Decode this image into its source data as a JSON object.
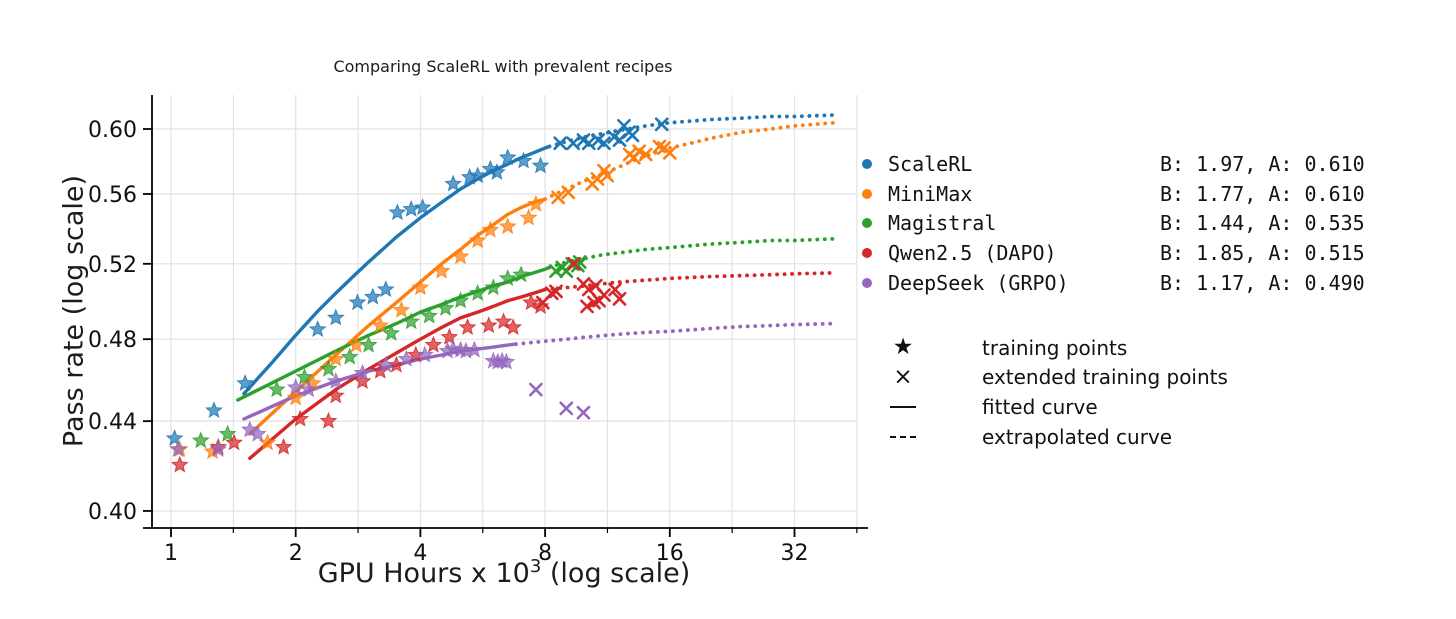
{
  "title": "Comparing ScaleRL with prevalent recipes",
  "axes": {
    "x_label_prefix": "GPU Hours x 10",
    "x_label_sup": "3",
    "x_label_suffix": " (log scale)",
    "y_label": "Pass rate (log scale)",
    "x_ticks": [
      {
        "label": "1",
        "value": 1
      },
      {
        "label": "2",
        "value": 2
      },
      {
        "label": "4",
        "value": 4
      },
      {
        "label": "8",
        "value": 8
      },
      {
        "label": "16",
        "value": 16
      },
      {
        "label": "32",
        "value": 32
      }
    ],
    "x_minor_ticks": [
      1.4142,
      2.8284,
      5.6569,
      11.3137,
      22.6274,
      45.2548
    ],
    "x_gridlines": [
      1,
      1.4142,
      2,
      2.8284,
      4,
      5.6569,
      8,
      11.3137,
      16,
      22.6274,
      32,
      45.2548
    ],
    "y_ticks": [
      {
        "label": "0.60",
        "value": 0.6
      },
      {
        "label": "0.56",
        "value": 0.56
      },
      {
        "label": "0.52",
        "value": 0.52
      },
      {
        "label": "0.48",
        "value": 0.48
      },
      {
        "label": "0.44",
        "value": 0.44
      },
      {
        "label": "0.40",
        "value": 0.4
      }
    ],
    "grid_color": "#e2e2e2",
    "spine_color": "#000000"
  },
  "chart_data": {
    "type": "scatter",
    "title": "Comparing ScaleRL with prevalent recipes",
    "xlabel": "GPU Hours x 10^3 (log scale)",
    "ylabel": "Pass rate (log scale)",
    "xscale": "log2",
    "yscale": "log",
    "xlim": [
      0.9,
      45
    ],
    "ylim": [
      0.393,
      0.622
    ],
    "grid": true,
    "legend_position": "right",
    "series": [
      {
        "name": "ScaleRL",
        "color": "#1f77b4",
        "B": 1.97,
        "A": 0.61,
        "stats": "B: 1.97, A: 0.610",
        "train": [
          [
            1.02,
            0.432
          ],
          [
            1.27,
            0.445
          ],
          [
            1.51,
            0.458
          ],
          [
            2.26,
            0.485
          ],
          [
            2.5,
            0.491
          ],
          [
            2.82,
            0.499
          ],
          [
            3.07,
            0.502
          ],
          [
            3.3,
            0.506
          ],
          [
            3.52,
            0.549
          ],
          [
            3.8,
            0.551
          ],
          [
            4.05,
            0.552
          ],
          [
            4.8,
            0.566
          ],
          [
            5.26,
            0.57
          ],
          [
            5.5,
            0.571
          ],
          [
            5.9,
            0.575
          ],
          [
            6.12,
            0.573
          ],
          [
            6.5,
            0.582
          ],
          [
            7.1,
            0.58
          ],
          [
            7.8,
            0.577
          ]
        ],
        "extended": [
          [
            8.7,
            0.591
          ],
          [
            9.35,
            0.591
          ],
          [
            9.9,
            0.593
          ],
          [
            10.2,
            0.591
          ],
          [
            10.75,
            0.593
          ],
          [
            11.1,
            0.591
          ],
          [
            11.75,
            0.595
          ],
          [
            12.1,
            0.593
          ],
          [
            12.4,
            0.602
          ],
          [
            12.75,
            0.598
          ],
          [
            13.0,
            0.596
          ],
          [
            15.3,
            0.603
          ]
        ],
        "fit": [
          [
            1.5,
            0.453
          ],
          [
            1.75,
            0.468
          ],
          [
            2,
            0.482
          ],
          [
            2.25,
            0.494
          ],
          [
            2.5,
            0.504
          ],
          [
            2.75,
            0.513
          ],
          [
            3,
            0.521
          ],
          [
            3.5,
            0.535
          ],
          [
            4,
            0.546
          ],
          [
            4.5,
            0.555
          ],
          [
            5,
            0.563
          ],
          [
            5.5,
            0.569
          ],
          [
            6,
            0.574
          ],
          [
            6.5,
            0.578
          ],
          [
            7,
            0.582
          ],
          [
            7.5,
            0.585
          ],
          [
            8,
            0.588
          ],
          [
            8.2,
            0.589
          ]
        ],
        "extrapolated": [
          [
            8.2,
            0.589
          ],
          [
            9,
            0.592
          ],
          [
            10,
            0.595
          ],
          [
            11,
            0.597
          ],
          [
            12,
            0.599
          ],
          [
            14,
            0.602
          ],
          [
            16,
            0.604
          ],
          [
            20,
            0.606
          ],
          [
            24,
            0.607
          ],
          [
            28,
            0.608
          ],
          [
            32,
            0.608
          ],
          [
            40,
            0.609
          ]
        ]
      },
      {
        "name": "MiniMax",
        "color": "#ff7f0e",
        "B": 1.77,
        "A": 0.61,
        "stats": "B: 1.77, A: 0.610",
        "train": [
          [
            1.05,
            0.427
          ],
          [
            1.26,
            0.426
          ],
          [
            1.71,
            0.43
          ],
          [
            2.0,
            0.451
          ],
          [
            2.2,
            0.458
          ],
          [
            2.5,
            0.47
          ],
          [
            2.8,
            0.477
          ],
          [
            3.2,
            0.487
          ],
          [
            3.6,
            0.495
          ],
          [
            4.0,
            0.507
          ],
          [
            4.5,
            0.516
          ],
          [
            5.0,
            0.524
          ],
          [
            5.5,
            0.533
          ],
          [
            5.9,
            0.539
          ],
          [
            6.5,
            0.541
          ],
          [
            7.3,
            0.546
          ],
          [
            7.6,
            0.554
          ]
        ],
        "extended": [
          [
            8.6,
            0.558
          ],
          [
            9.1,
            0.561
          ],
          [
            10.4,
            0.566
          ],
          [
            10.7,
            0.569
          ],
          [
            11.1,
            0.574
          ],
          [
            11.3,
            0.571
          ],
          [
            12.8,
            0.584
          ],
          [
            13.1,
            0.582
          ],
          [
            13.5,
            0.586
          ],
          [
            14.0,
            0.584
          ],
          [
            15.1,
            0.589
          ],
          [
            15.5,
            0.588
          ],
          [
            16.0,
            0.585
          ]
        ],
        "fit": [
          [
            1.55,
            0.434
          ],
          [
            2,
            0.454
          ],
          [
            2.5,
            0.472
          ],
          [
            3,
            0.487
          ],
          [
            3.5,
            0.499
          ],
          [
            4,
            0.51
          ],
          [
            4.5,
            0.52
          ],
          [
            5,
            0.528
          ],
          [
            5.5,
            0.536
          ],
          [
            6,
            0.542
          ],
          [
            6.5,
            0.548
          ],
          [
            7,
            0.552
          ],
          [
            7.5,
            0.555
          ],
          [
            8,
            0.557
          ]
        ],
        "extrapolated": [
          [
            8,
            0.557
          ],
          [
            9,
            0.563
          ],
          [
            10,
            0.568
          ],
          [
            11,
            0.572
          ],
          [
            12,
            0.576
          ],
          [
            13,
            0.58
          ],
          [
            14,
            0.583
          ],
          [
            16,
            0.588
          ],
          [
            18,
            0.591
          ],
          [
            20,
            0.594
          ],
          [
            24,
            0.598
          ],
          [
            28,
            0.6
          ],
          [
            32,
            0.602
          ],
          [
            40,
            0.604
          ]
        ]
      },
      {
        "name": "Magistral",
        "color": "#2ca02c",
        "B": 1.44,
        "A": 0.535,
        "stats": "B: 1.44, A: 0.535",
        "train": [
          [
            1.18,
            0.431
          ],
          [
            1.37,
            0.434
          ],
          [
            1.8,
            0.455
          ],
          [
            2.1,
            0.461
          ],
          [
            2.4,
            0.465
          ],
          [
            2.7,
            0.471
          ],
          [
            3.0,
            0.477
          ],
          [
            3.4,
            0.483
          ],
          [
            3.8,
            0.489
          ],
          [
            4.2,
            0.492
          ],
          [
            4.6,
            0.496
          ],
          [
            5.0,
            0.5
          ],
          [
            5.5,
            0.504
          ],
          [
            6.0,
            0.507
          ],
          [
            6.5,
            0.512
          ],
          [
            7.0,
            0.514
          ]
        ],
        "extended": [
          [
            8.5,
            0.516
          ],
          [
            8.8,
            0.518
          ],
          [
            9.0,
            0.516
          ],
          [
            9.3,
            0.52
          ],
          [
            9.6,
            0.519
          ],
          [
            9.7,
            0.521
          ]
        ],
        "fit": [
          [
            1.45,
            0.45
          ],
          [
            2,
            0.464
          ],
          [
            2.5,
            0.474
          ],
          [
            3,
            0.482
          ],
          [
            3.5,
            0.488
          ],
          [
            4,
            0.494
          ],
          [
            4.5,
            0.498
          ],
          [
            5,
            0.502
          ],
          [
            5.5,
            0.505
          ],
          [
            6,
            0.508
          ],
          [
            6.5,
            0.51
          ],
          [
            7,
            0.513
          ],
          [
            7.5,
            0.515
          ],
          [
            8,
            0.517
          ],
          [
            8.2,
            0.518
          ]
        ],
        "extrapolated": [
          [
            8.2,
            0.518
          ],
          [
            9,
            0.521
          ],
          [
            10,
            0.523
          ],
          [
            11,
            0.525
          ],
          [
            12,
            0.526
          ],
          [
            14,
            0.528
          ],
          [
            16,
            0.529
          ],
          [
            20,
            0.531
          ],
          [
            24,
            0.532
          ],
          [
            28,
            0.533
          ],
          [
            32,
            0.533
          ],
          [
            40,
            0.534
          ]
        ]
      },
      {
        "name": "Qwen2.5 (DAPO)",
        "color": "#d62728",
        "B": 1.85,
        "A": 0.515,
        "stats": "B: 1.85, A: 0.515",
        "train": [
          [
            1.05,
            0.42
          ],
          [
            1.3,
            0.428
          ],
          [
            1.42,
            0.43
          ],
          [
            1.87,
            0.428
          ],
          [
            2.05,
            0.441
          ],
          [
            2.4,
            0.44
          ],
          [
            2.5,
            0.452
          ],
          [
            2.9,
            0.459
          ],
          [
            3.2,
            0.464
          ],
          [
            3.5,
            0.467
          ],
          [
            3.9,
            0.472
          ],
          [
            4.3,
            0.477
          ],
          [
            4.7,
            0.481
          ],
          [
            5.2,
            0.486
          ],
          [
            5.85,
            0.487
          ],
          [
            6.35,
            0.489
          ],
          [
            6.7,
            0.486
          ],
          [
            7.4,
            0.499
          ],
          [
            7.8,
            0.497
          ]
        ],
        "extended": [
          [
            7.9,
            0.499
          ],
          [
            8.3,
            0.504
          ],
          [
            8.5,
            0.505
          ],
          [
            9.4,
            0.52
          ],
          [
            9.9,
            0.509
          ],
          [
            10.1,
            0.497
          ],
          [
            10.2,
            0.506
          ],
          [
            10.5,
            0.499
          ],
          [
            10.6,
            0.508
          ],
          [
            10.8,
            0.5
          ],
          [
            11.1,
            0.503
          ],
          [
            11.8,
            0.506
          ],
          [
            12.1,
            0.501
          ]
        ],
        "fit": [
          [
            1.55,
            0.423
          ],
          [
            2,
            0.441
          ],
          [
            2.5,
            0.455
          ],
          [
            3,
            0.465
          ],
          [
            3.5,
            0.473
          ],
          [
            4,
            0.48
          ],
          [
            4.5,
            0.486
          ],
          [
            5,
            0.491
          ],
          [
            5.5,
            0.494
          ],
          [
            6,
            0.497
          ],
          [
            6.5,
            0.5
          ],
          [
            7,
            0.502
          ],
          [
            7.5,
            0.504
          ],
          [
            8,
            0.506
          ]
        ],
        "extrapolated": [
          [
            8,
            0.506
          ],
          [
            9,
            0.507
          ],
          [
            10,
            0.508
          ],
          [
            11,
            0.509
          ],
          [
            12,
            0.51
          ],
          [
            14,
            0.511
          ],
          [
            16,
            0.512
          ],
          [
            20,
            0.513
          ],
          [
            24,
            0.5135
          ],
          [
            28,
            0.514
          ],
          [
            32,
            0.5145
          ],
          [
            40,
            0.515
          ]
        ]
      },
      {
        "name": "DeepSeek (GRPO)",
        "color": "#9467bd",
        "B": 1.17,
        "A": 0.49,
        "stats": "B: 1.17, A: 0.490",
        "train": [
          [
            1.04,
            0.427
          ],
          [
            1.3,
            0.427
          ],
          [
            1.55,
            0.436
          ],
          [
            1.62,
            0.434
          ],
          [
            2.0,
            0.456
          ],
          [
            2.15,
            0.455
          ],
          [
            2.5,
            0.459
          ],
          [
            2.9,
            0.463
          ],
          [
            3.3,
            0.467
          ],
          [
            3.7,
            0.47
          ],
          [
            4.1,
            0.472
          ],
          [
            4.65,
            0.474
          ],
          [
            4.8,
            0.475
          ],
          [
            5.0,
            0.4745
          ],
          [
            5.15,
            0.474
          ],
          [
            5.4,
            0.4745
          ],
          [
            6.0,
            0.469
          ],
          [
            6.15,
            0.4685
          ],
          [
            6.3,
            0.469
          ],
          [
            6.45,
            0.4685
          ]
        ],
        "extended": [
          [
            7.6,
            0.455
          ],
          [
            9.0,
            0.446
          ],
          [
            9.9,
            0.444
          ]
        ],
        "fit": [
          [
            1.5,
            0.441
          ],
          [
            2,
            0.452
          ],
          [
            2.5,
            0.459
          ],
          [
            3,
            0.464
          ],
          [
            3.5,
            0.467
          ],
          [
            4,
            0.47
          ],
          [
            4.5,
            0.472
          ],
          [
            5,
            0.474
          ],
          [
            5.5,
            0.475
          ],
          [
            6,
            0.476
          ],
          [
            6.5,
            0.477
          ],
          [
            6.8,
            0.4775
          ]
        ],
        "extrapolated": [
          [
            6.8,
            0.4775
          ],
          [
            8,
            0.479
          ],
          [
            9,
            0.48
          ],
          [
            10,
            0.481
          ],
          [
            12,
            0.4825
          ],
          [
            14,
            0.4835
          ],
          [
            16,
            0.484
          ],
          [
            20,
            0.4855
          ],
          [
            24,
            0.4865
          ],
          [
            28,
            0.487
          ],
          [
            32,
            0.4875
          ],
          [
            40,
            0.488
          ]
        ]
      }
    ]
  },
  "legend": {
    "markers": [
      {
        "glyph": "★",
        "label": "training points"
      },
      {
        "glyph": "×",
        "label": "extended training points"
      },
      {
        "glyph": "—",
        "label": "fitted curve"
      },
      {
        "glyph": "--",
        "label": "extrapolated curve"
      }
    ]
  }
}
